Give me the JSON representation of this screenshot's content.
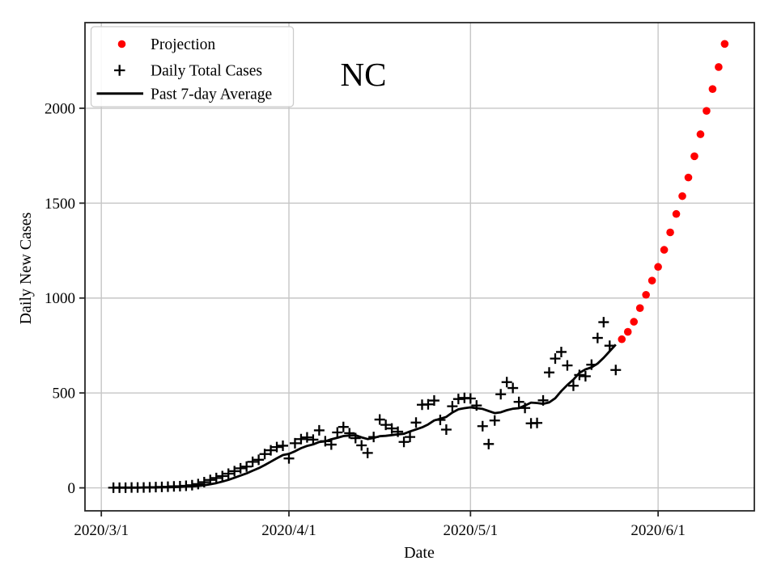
{
  "figure": {
    "background_color": "#ffffff",
    "text_color": "#000000"
  },
  "chart_data": {
    "type": "scatter",
    "title": "NC",
    "xlabel": "Date",
    "ylabel": "Daily New Cases",
    "x_tick_labels": [
      "2020/3/1",
      "2020/4/1",
      "2020/5/1",
      "2020/6/1"
    ],
    "y_tick_values": [
      0,
      500,
      1000,
      1500,
      2000
    ],
    "y_tick_labels": [
      "0",
      "500",
      "1000",
      "1500",
      "2000"
    ],
    "xlim_days_from_2020_3_1": [
      -2.7,
      107.9
    ],
    "ylim": [
      -121,
      2451
    ],
    "grid": true,
    "grid_color": "#c6c6c6",
    "frame_color": "#262626",
    "legend_position": "upper left",
    "series": [
      {
        "name": "Projection",
        "kind": "scatter",
        "marker": "dot",
        "color": "#ff0000",
        "start_date": "2020/5/26",
        "cadence": "daily",
        "values": [
          783,
          822,
          875,
          947,
          1017,
          1092,
          1164,
          1254,
          1346,
          1443,
          1537,
          1635,
          1747,
          1863,
          1986,
          2101,
          2217,
          2339
        ]
      },
      {
        "name": "Daily Total Cases",
        "kind": "scatter",
        "marker": "plus",
        "color": "#000000",
        "start_date": "2020/3/3",
        "cadence": "daily",
        "values": [
          1,
          1,
          1,
          2,
          2,
          2,
          3,
          4,
          5,
          6,
          8,
          9,
          11,
          14,
          20,
          30,
          42,
          52,
          62,
          75,
          88,
          103,
          112,
          137,
          148,
          178,
          198,
          215,
          222,
          155,
          235,
          257,
          266,
          254,
          303,
          246,
          228,
          292,
          321,
          288,
          262,
          224,
          184,
          268,
          360,
          332,
          313,
          296,
          242,
          268,
          344,
          438,
          440,
          460,
          358,
          307,
          430,
          468,
          474,
          471,
          434,
          325,
          231,
          355,
          493,
          557,
          526,
          453,
          421,
          340,
          342,
          461,
          608,
          681,
          716,
          645,
          538,
          595,
          588,
          649,
          790,
          873,
          749,
          621
        ]
      },
      {
        "name": "Past 7-day Average",
        "kind": "line",
        "marker": "none",
        "color": "#000000",
        "start_date": "2020/3/3",
        "cadence": "daily",
        "values": [
          1,
          1,
          1,
          1,
          1,
          2,
          2,
          2,
          3,
          3,
          4,
          5,
          7,
          8,
          10,
          14,
          19,
          25,
          33,
          42,
          53,
          65,
          76,
          90,
          104,
          120,
          138,
          156,
          173,
          179,
          193,
          209,
          221,
          229,
          242,
          245,
          256,
          264,
          273,
          276,
          277,
          266,
          257,
          263,
          272,
          274,
          278,
          282,
          285,
          297,
          308,
          319,
          334,
          355,
          364,
          374,
          397,
          414,
          420,
          424,
          420,
          416,
          405,
          394,
          398,
          409,
          417,
          420,
          434,
          449,
          447,
          443,
          450,
          472,
          510,
          542,
          570,
          606,
          624,
          635,
          655,
          685,
          720,
          755
        ]
      }
    ]
  }
}
